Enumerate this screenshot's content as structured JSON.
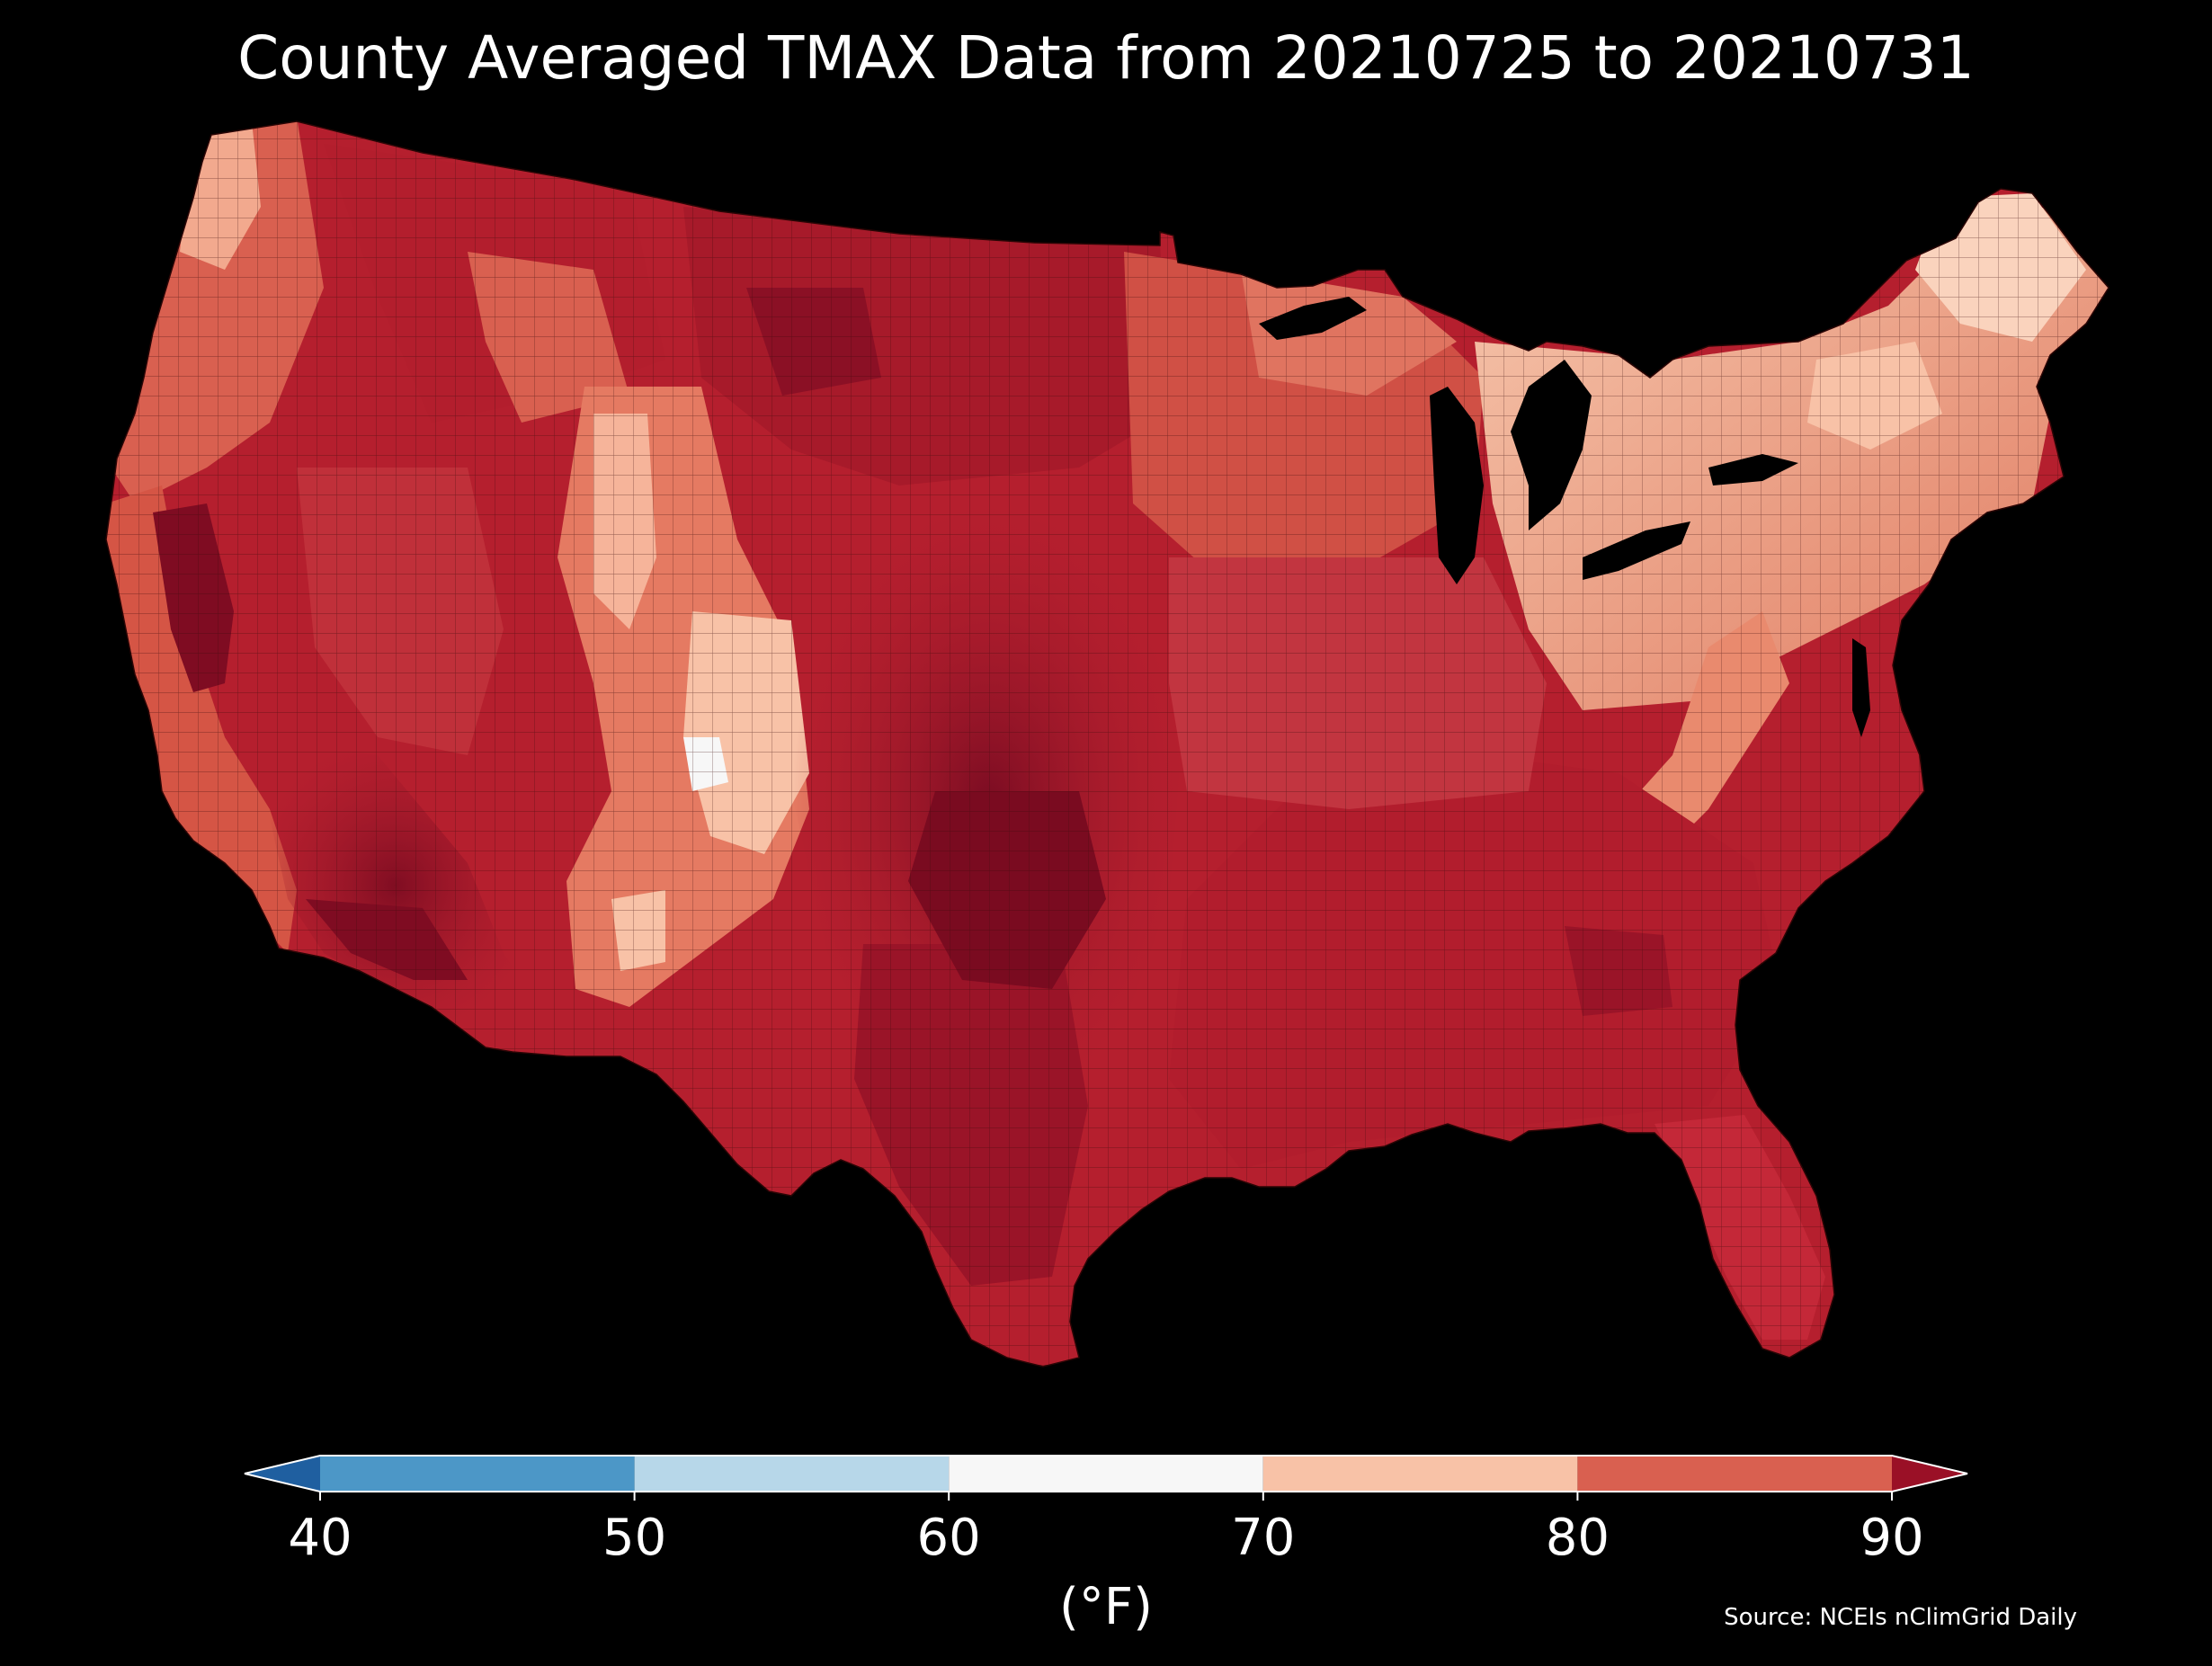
{
  "title": "County Averaged TMAX Data from 20210725 to 20210731",
  "map": {
    "region": "Contiguous United States",
    "colors": {
      "above_90": "#8b1025",
      "c80_90": "#b51f2e",
      "c75_85": "#cf4a3f",
      "c80_mid": "#d96050",
      "c70_80": "#f8c2a7",
      "c60_70": "#f7f7f7",
      "lake": "#000000"
    }
  },
  "colorbar": {
    "ticks": [
      "40",
      "50",
      "60",
      "70",
      "80",
      "90"
    ],
    "unit": "(°F)",
    "bins": [
      {
        "range": "<40",
        "color": "#1f5fa0"
      },
      {
        "range": "40-50",
        "color": "#4c97c7"
      },
      {
        "range": "50-60",
        "color": "#b7d7e9"
      },
      {
        "range": "60-70",
        "color": "#f7f7f7"
      },
      {
        "range": "70-80",
        "color": "#f8c2a7"
      },
      {
        "range": "80-90",
        "color": "#d96050"
      },
      {
        "range": ">90",
        "color": "#9a1026"
      }
    ]
  },
  "source": "Source: NCEIs nClimGrid Daily"
}
